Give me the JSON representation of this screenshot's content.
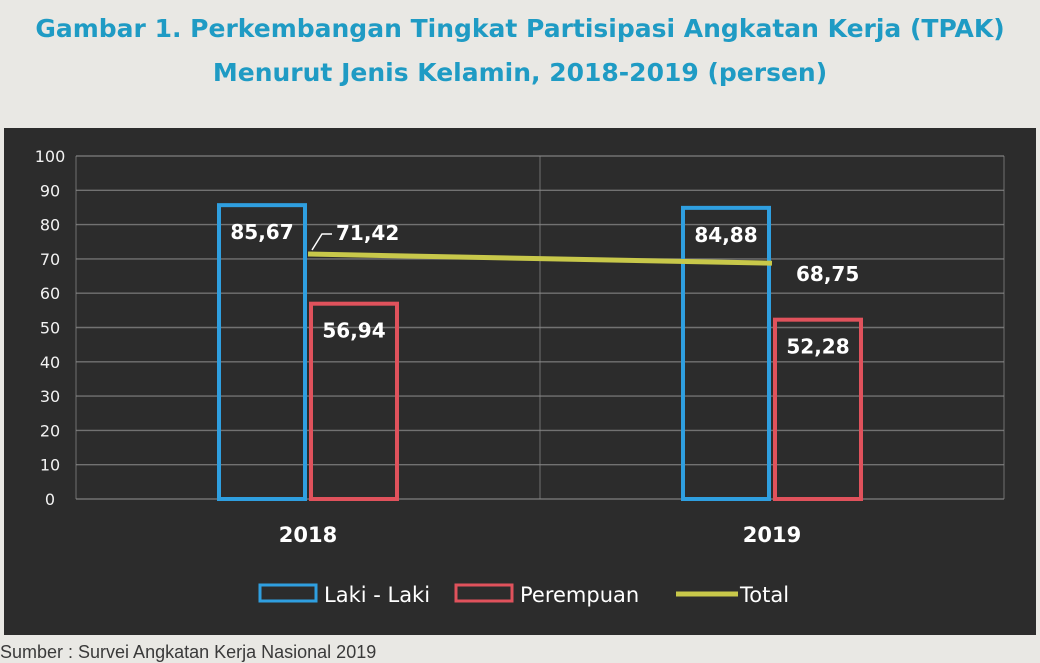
{
  "title": {
    "line1": "Gambar 1. Perkembangan Tingkat Partisipasi Angkatan Kerja (TPAK)",
    "line2": "Menurut Jenis Kelamin, 2018-2019 (persen)"
  },
  "source": "Sumber : Survei Angkatan Kerja Nasional 2019",
  "chart_data": {
    "type": "bar",
    "categories": [
      "2018",
      "2019"
    ],
    "series": [
      {
        "name": "Laki - Laki",
        "type": "bar",
        "values": [
          85.67,
          84.88
        ],
        "labels": [
          "85,67",
          "84,88"
        ],
        "color": "#2f9fe0"
      },
      {
        "name": "Perempuan",
        "type": "bar",
        "values": [
          56.94,
          52.28
        ],
        "labels": [
          "56,94",
          "52,28"
        ],
        "color": "#e0525c"
      },
      {
        "name": "Total",
        "type": "line",
        "values": [
          71.42,
          68.75
        ],
        "labels": [
          "71,42",
          "68,75"
        ],
        "color": "#c8c84a"
      }
    ],
    "ylim": [
      0,
      100
    ],
    "yticks": [
      0,
      10,
      20,
      30,
      40,
      50,
      60,
      70,
      80,
      90,
      100
    ],
    "grid": true,
    "legend": "bottom",
    "background": "#2c2c2c"
  }
}
